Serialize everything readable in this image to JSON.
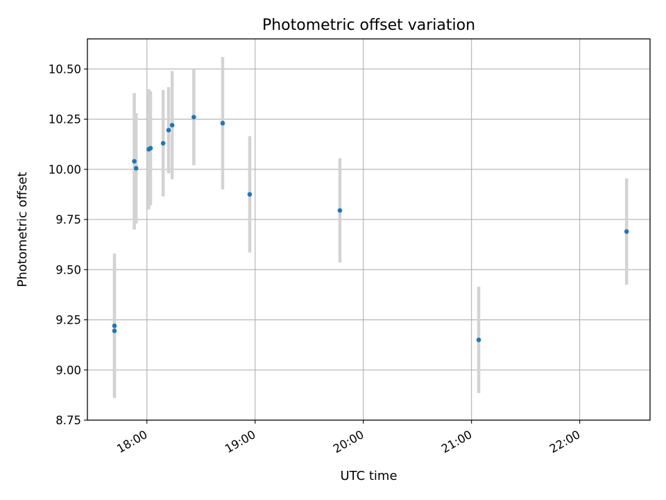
{
  "chart_data": {
    "type": "scatter",
    "title": "Photometric offset variation",
    "xlabel": "UTC time",
    "ylabel": "Photometric offset",
    "xlim": [
      "17:27",
      "22:39"
    ],
    "ylim": [
      8.75,
      10.65
    ],
    "x_ticks": [
      "18:00",
      "19:00",
      "20:00",
      "21:00",
      "22:00"
    ],
    "y_ticks": [
      "8.75",
      "9.00",
      "9.25",
      "9.50",
      "9.75",
      "10.00",
      "10.25",
      "10.50"
    ],
    "grid": true,
    "colors": {
      "points": "#1f77b4",
      "errorbars": "#d3d3d3",
      "grid": "#b0b0b0"
    },
    "points": [
      {
        "x": "17:42",
        "y": 9.22,
        "err": 0.36
      },
      {
        "x": "17:42",
        "y": 9.195,
        "err": 0.33
      },
      {
        "x": "17:53",
        "y": 10.04,
        "err": 0.34
      },
      {
        "x": "17:54",
        "y": 10.005,
        "err": 0.275
      },
      {
        "x": "18:01",
        "y": 10.1,
        "err": 0.3
      },
      {
        "x": "18:02",
        "y": 10.105,
        "err": 0.285
      },
      {
        "x": "18:09",
        "y": 10.13,
        "err": 0.265
      },
      {
        "x": "18:12",
        "y": 10.195,
        "err": 0.215
      },
      {
        "x": "18:14",
        "y": 10.22,
        "err": 0.27
      },
      {
        "x": "18:26",
        "y": 10.26,
        "err": 0.24
      },
      {
        "x": "18:42",
        "y": 10.23,
        "err": 0.33
      },
      {
        "x": "18:57",
        "y": 9.875,
        "err": 0.29
      },
      {
        "x": "19:47",
        "y": 9.795,
        "err": 0.26
      },
      {
        "x": "21:04",
        "y": 9.15,
        "err": 0.265
      },
      {
        "x": "22:26",
        "y": 9.69,
        "err": 0.265
      }
    ]
  }
}
